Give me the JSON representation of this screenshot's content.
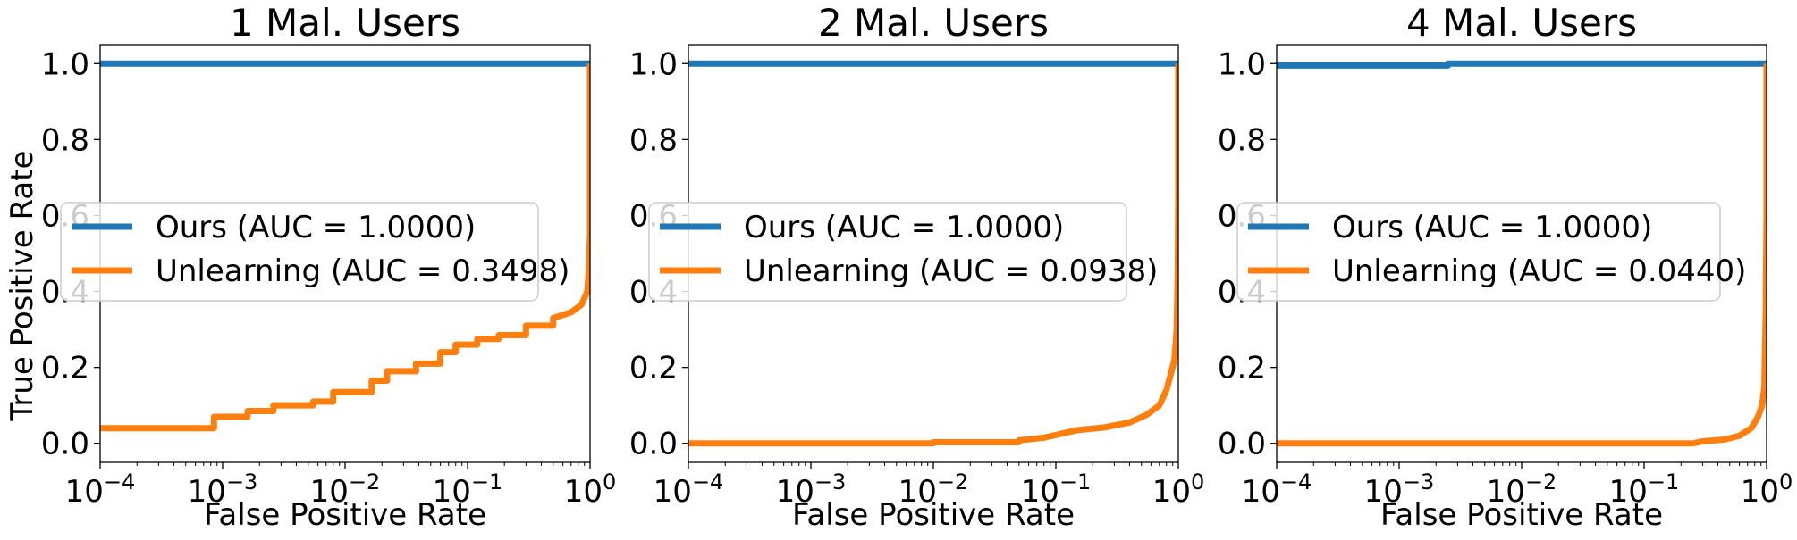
{
  "figure": {
    "ylabel": "True Positive Rate",
    "xlabel": "False Positive Rate"
  },
  "chart_data": [
    {
      "type": "line",
      "title": "1 Mal. Users",
      "xlabel": "False Positive Rate",
      "ylabel": "True Positive Rate",
      "xscale": "log",
      "xlim": [
        0.0001,
        1
      ],
      "ylim": [
        -0.05,
        1.05
      ],
      "x_ticks": [
        0.0001,
        0.001,
        0.01,
        0.1,
        1
      ],
      "x_tick_labels": [
        [
          "10",
          "−4"
        ],
        [
          "10",
          "−3"
        ],
        [
          "10",
          "−2"
        ],
        [
          "10",
          "−1"
        ],
        [
          "10",
          "0"
        ]
      ],
      "y_ticks": [
        "0.0",
        "0.2",
        "0.4",
        "0.6",
        "0.8",
        "1.0"
      ],
      "legend_position": "center-left",
      "series": [
        {
          "name": "Ours (AUC = 1.0000)",
          "color": "#1f77b4",
          "x": [
            0.0001,
            1,
            1
          ],
          "y": [
            1.0,
            1.0,
            1.0
          ]
        },
        {
          "name": "Unlearning (AUC = 0.3498)",
          "color": "#ff7f0e",
          "x": [
            0.0001,
            0.00085,
            0.00085,
            0.0016,
            0.0016,
            0.0026,
            0.0026,
            0.0055,
            0.0055,
            0.008,
            0.008,
            0.0165,
            0.0165,
            0.022,
            0.022,
            0.038,
            0.038,
            0.06,
            0.06,
            0.08,
            0.08,
            0.12,
            0.12,
            0.18,
            0.18,
            0.3,
            0.3,
            0.5,
            0.5,
            0.7,
            0.85,
            0.95,
            0.98,
            1.0,
            1.0
          ],
          "y": [
            0.04,
            0.04,
            0.07,
            0.07,
            0.085,
            0.085,
            0.1,
            0.1,
            0.11,
            0.11,
            0.135,
            0.135,
            0.165,
            0.165,
            0.19,
            0.19,
            0.21,
            0.21,
            0.24,
            0.24,
            0.26,
            0.26,
            0.275,
            0.275,
            0.285,
            0.285,
            0.31,
            0.31,
            0.33,
            0.345,
            0.365,
            0.4,
            0.46,
            0.55,
            1.0
          ]
        }
      ]
    },
    {
      "type": "line",
      "title": "2 Mal. Users",
      "xlabel": "False Positive Rate",
      "xscale": "log",
      "xlim": [
        0.0001,
        1
      ],
      "ylim": [
        -0.05,
        1.05
      ],
      "x_ticks": [
        0.0001,
        0.001,
        0.01,
        0.1,
        1
      ],
      "x_tick_labels": [
        [
          "10",
          "−4"
        ],
        [
          "10",
          "−3"
        ],
        [
          "10",
          "−2"
        ],
        [
          "10",
          "−1"
        ],
        [
          "10",
          "0"
        ]
      ],
      "y_ticks": [
        "0.0",
        "0.2",
        "0.4",
        "0.6",
        "0.8",
        "1.0"
      ],
      "legend_position": "center-left",
      "series": [
        {
          "name": "Ours (AUC = 1.0000)",
          "color": "#1f77b4",
          "x": [
            0.0001,
            1,
            1
          ],
          "y": [
            1.0,
            1.0,
            1.0
          ]
        },
        {
          "name": "Unlearning (AUC = 0.0938)",
          "color": "#ff7f0e",
          "x": [
            0.0001,
            0.01,
            0.01,
            0.05,
            0.05,
            0.08,
            0.1,
            0.15,
            0.25,
            0.4,
            0.55,
            0.7,
            0.8,
            0.88,
            0.93,
            0.97,
            0.99,
            1.0,
            1.0
          ],
          "y": [
            0.0,
            0.0,
            0.003,
            0.003,
            0.008,
            0.015,
            0.022,
            0.035,
            0.042,
            0.055,
            0.075,
            0.1,
            0.14,
            0.19,
            0.22,
            0.3,
            0.45,
            0.65,
            1.0
          ]
        }
      ]
    },
    {
      "type": "line",
      "title": "4 Mal. Users",
      "xlabel": "False Positive Rate",
      "xscale": "log",
      "xlim": [
        0.0001,
        1
      ],
      "ylim": [
        -0.05,
        1.05
      ],
      "x_ticks": [
        0.0001,
        0.001,
        0.01,
        0.1,
        1
      ],
      "x_tick_labels": [
        [
          "10",
          "−4"
        ],
        [
          "10",
          "−3"
        ],
        [
          "10",
          "−2"
        ],
        [
          "10",
          "−1"
        ],
        [
          "10",
          "0"
        ]
      ],
      "y_ticks": [
        "0.0",
        "0.2",
        "0.4",
        "0.6",
        "0.8",
        "1.0"
      ],
      "legend_position": "center-left",
      "series": [
        {
          "name": "Ours (AUC = 1.0000)",
          "color": "#1f77b4",
          "x": [
            0.0001,
            0.0025,
            0.0025,
            1,
            1
          ],
          "y": [
            0.995,
            0.995,
            1.0,
            1.0,
            1.0
          ]
        },
        {
          "name": "Unlearning (AUC = 0.0440)",
          "color": "#ff7f0e",
          "x": [
            0.0001,
            0.25,
            0.3,
            0.45,
            0.6,
            0.75,
            0.85,
            0.92,
            0.96,
            0.985,
            1.0,
            1.0
          ],
          "y": [
            0.0,
            0.0,
            0.005,
            0.01,
            0.02,
            0.04,
            0.07,
            0.1,
            0.15,
            0.35,
            0.6,
            1.0
          ]
        }
      ]
    }
  ]
}
